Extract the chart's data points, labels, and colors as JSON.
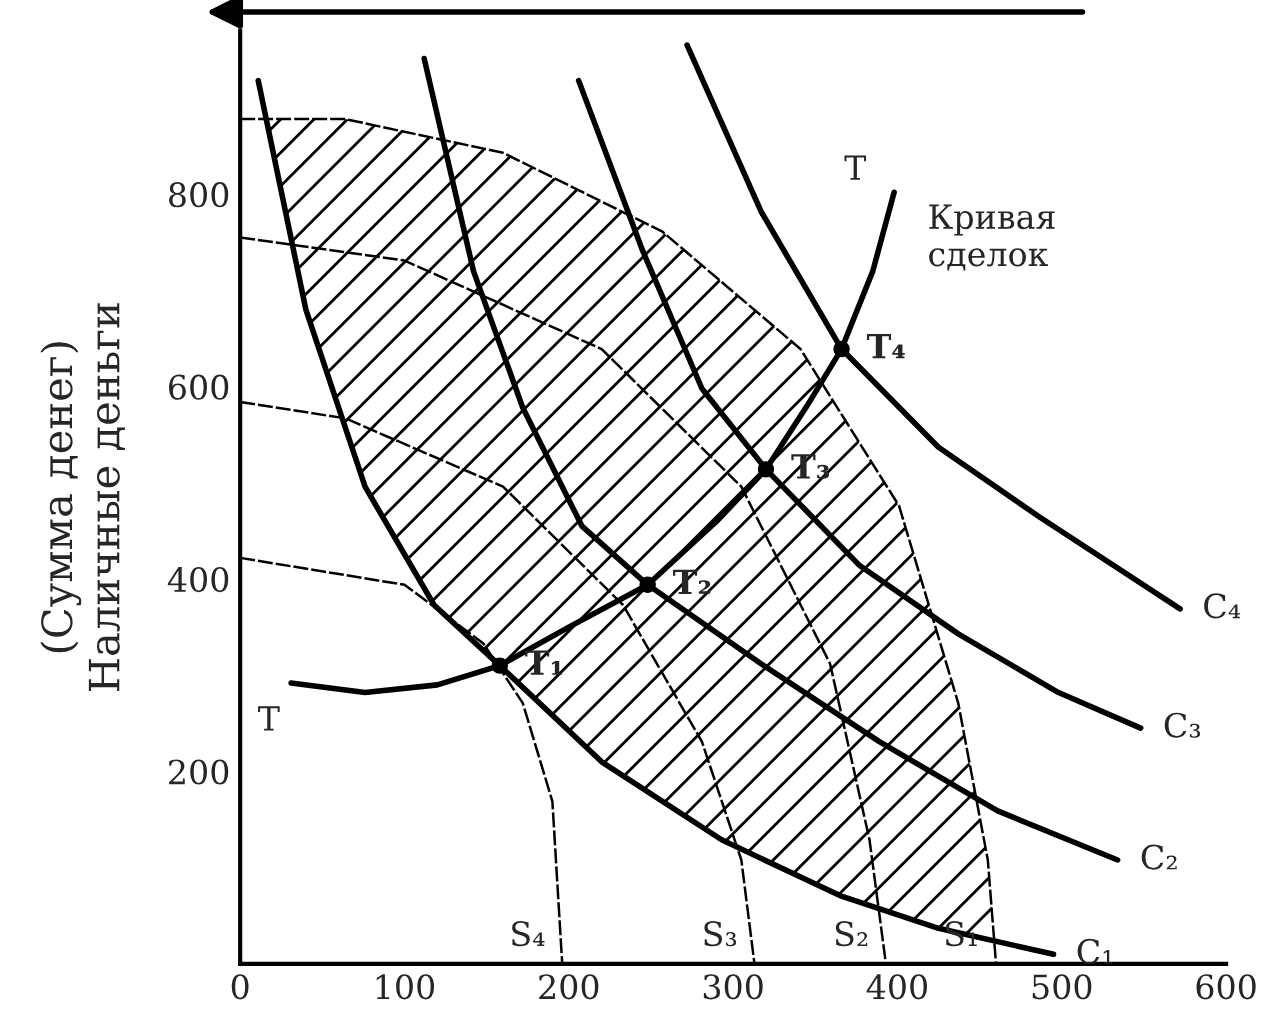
{
  "chart_data": {
    "type": "line",
    "ylabel": "(Сумма денег)\nНаличные деньги",
    "xlim": [
      0,
      600
    ],
    "ylim": [
      0,
      970
    ],
    "xticks": [
      0,
      100,
      200,
      300,
      400,
      500,
      600
    ],
    "yticks": [
      200,
      400,
      600,
      800
    ],
    "grid": false,
    "legend": false,
    "marker": "none",
    "series": [
      {
        "name": "S₄",
        "color": "#000000",
        "line_style": "dashed",
        "x": [
          0,
          100,
          148,
          172,
          190,
          196
        ],
        "values": [
          422,
          394,
          333,
          271,
          169,
          0
        ]
      },
      {
        "name": "S₃",
        "color": "#000000",
        "line_style": "dashed",
        "x": [
          0,
          64,
          160,
          233,
          281,
          305,
          313
        ],
        "values": [
          584,
          567,
          496,
          373,
          231,
          108,
          0
        ]
      },
      {
        "name": "S₂",
        "color": "#000000",
        "line_style": "dashed",
        "x": [
          0,
          100,
          220,
          305,
          359,
          383,
          393
        ],
        "values": [
          755,
          731,
          639,
          496,
          312,
          129,
          0
        ]
      },
      {
        "name": "S₁",
        "color": "#000000",
        "line_style": "dashed",
        "x": [
          0,
          64,
          160,
          257,
          341,
          401,
          437,
          455,
          460
        ],
        "values": [
          878,
          878,
          843,
          761,
          639,
          476,
          271,
          108,
          0
        ]
      },
      {
        "name": "C₁",
        "color": "#000000",
        "line_style": "solid",
        "x": [
          11,
          40,
          76,
          118,
          158,
          220,
          293,
          365,
          425,
          495
        ],
        "values": [
          918,
          680,
          496,
          373,
          310,
          210,
          129,
          71,
          37,
          10
        ]
      },
      {
        "name": "C₂",
        "color": "#000000",
        "line_style": "solid",
        "x": [
          112,
          142,
          172,
          208,
          248,
          317,
          389,
          461,
          534
        ],
        "values": [
          941,
          720,
          578,
          455,
          394,
          312,
          231,
          159,
          108
        ]
      },
      {
        "name": "C₃",
        "color": "#000000",
        "line_style": "solid",
        "x": [
          206,
          245,
          281,
          320,
          377,
          437,
          498,
          548
        ],
        "values": [
          918,
          741,
          598,
          514,
          414,
          343,
          282,
          245
        ]
      },
      {
        "name": "C₄",
        "color": "#000000",
        "line_style": "solid",
        "x": [
          272,
          317,
          366,
          425,
          486,
          572
        ],
        "values": [
          955,
          782,
          639,
          537,
          465,
          369
        ]
      },
      {
        "name": "T",
        "color": "#000000",
        "line_style": "solid",
        "x": [
          31,
          76,
          120,
          158,
          200,
          248,
          290,
          320,
          345,
          366,
          385,
          398
        ],
        "values": [
          292,
          282,
          290,
          310,
          350,
          394,
          460,
          514,
          580,
          639,
          720,
          802
        ]
      },
      {
        "type": "scatter",
        "color": "#000000",
        "marker": "circle",
        "x": [
          158,
          248,
          320,
          366
        ],
        "values": [
          310,
          394,
          514,
          639
        ]
      }
    ],
    "annotations": [
      {
        "text": "T₁",
        "x": 158,
        "y": 310
      },
      {
        "text": "T₂",
        "x": 248,
        "y": 394
      },
      {
        "text": "T₃",
        "x": 320,
        "y": 514
      },
      {
        "text": "T₄",
        "x": 366,
        "y": 639
      },
      {
        "text": "T",
        "x": 398,
        "y": 802
      },
      {
        "text": "Кривая\nсделок",
        "x": 398,
        "y": 802
      }
    ]
  }
}
